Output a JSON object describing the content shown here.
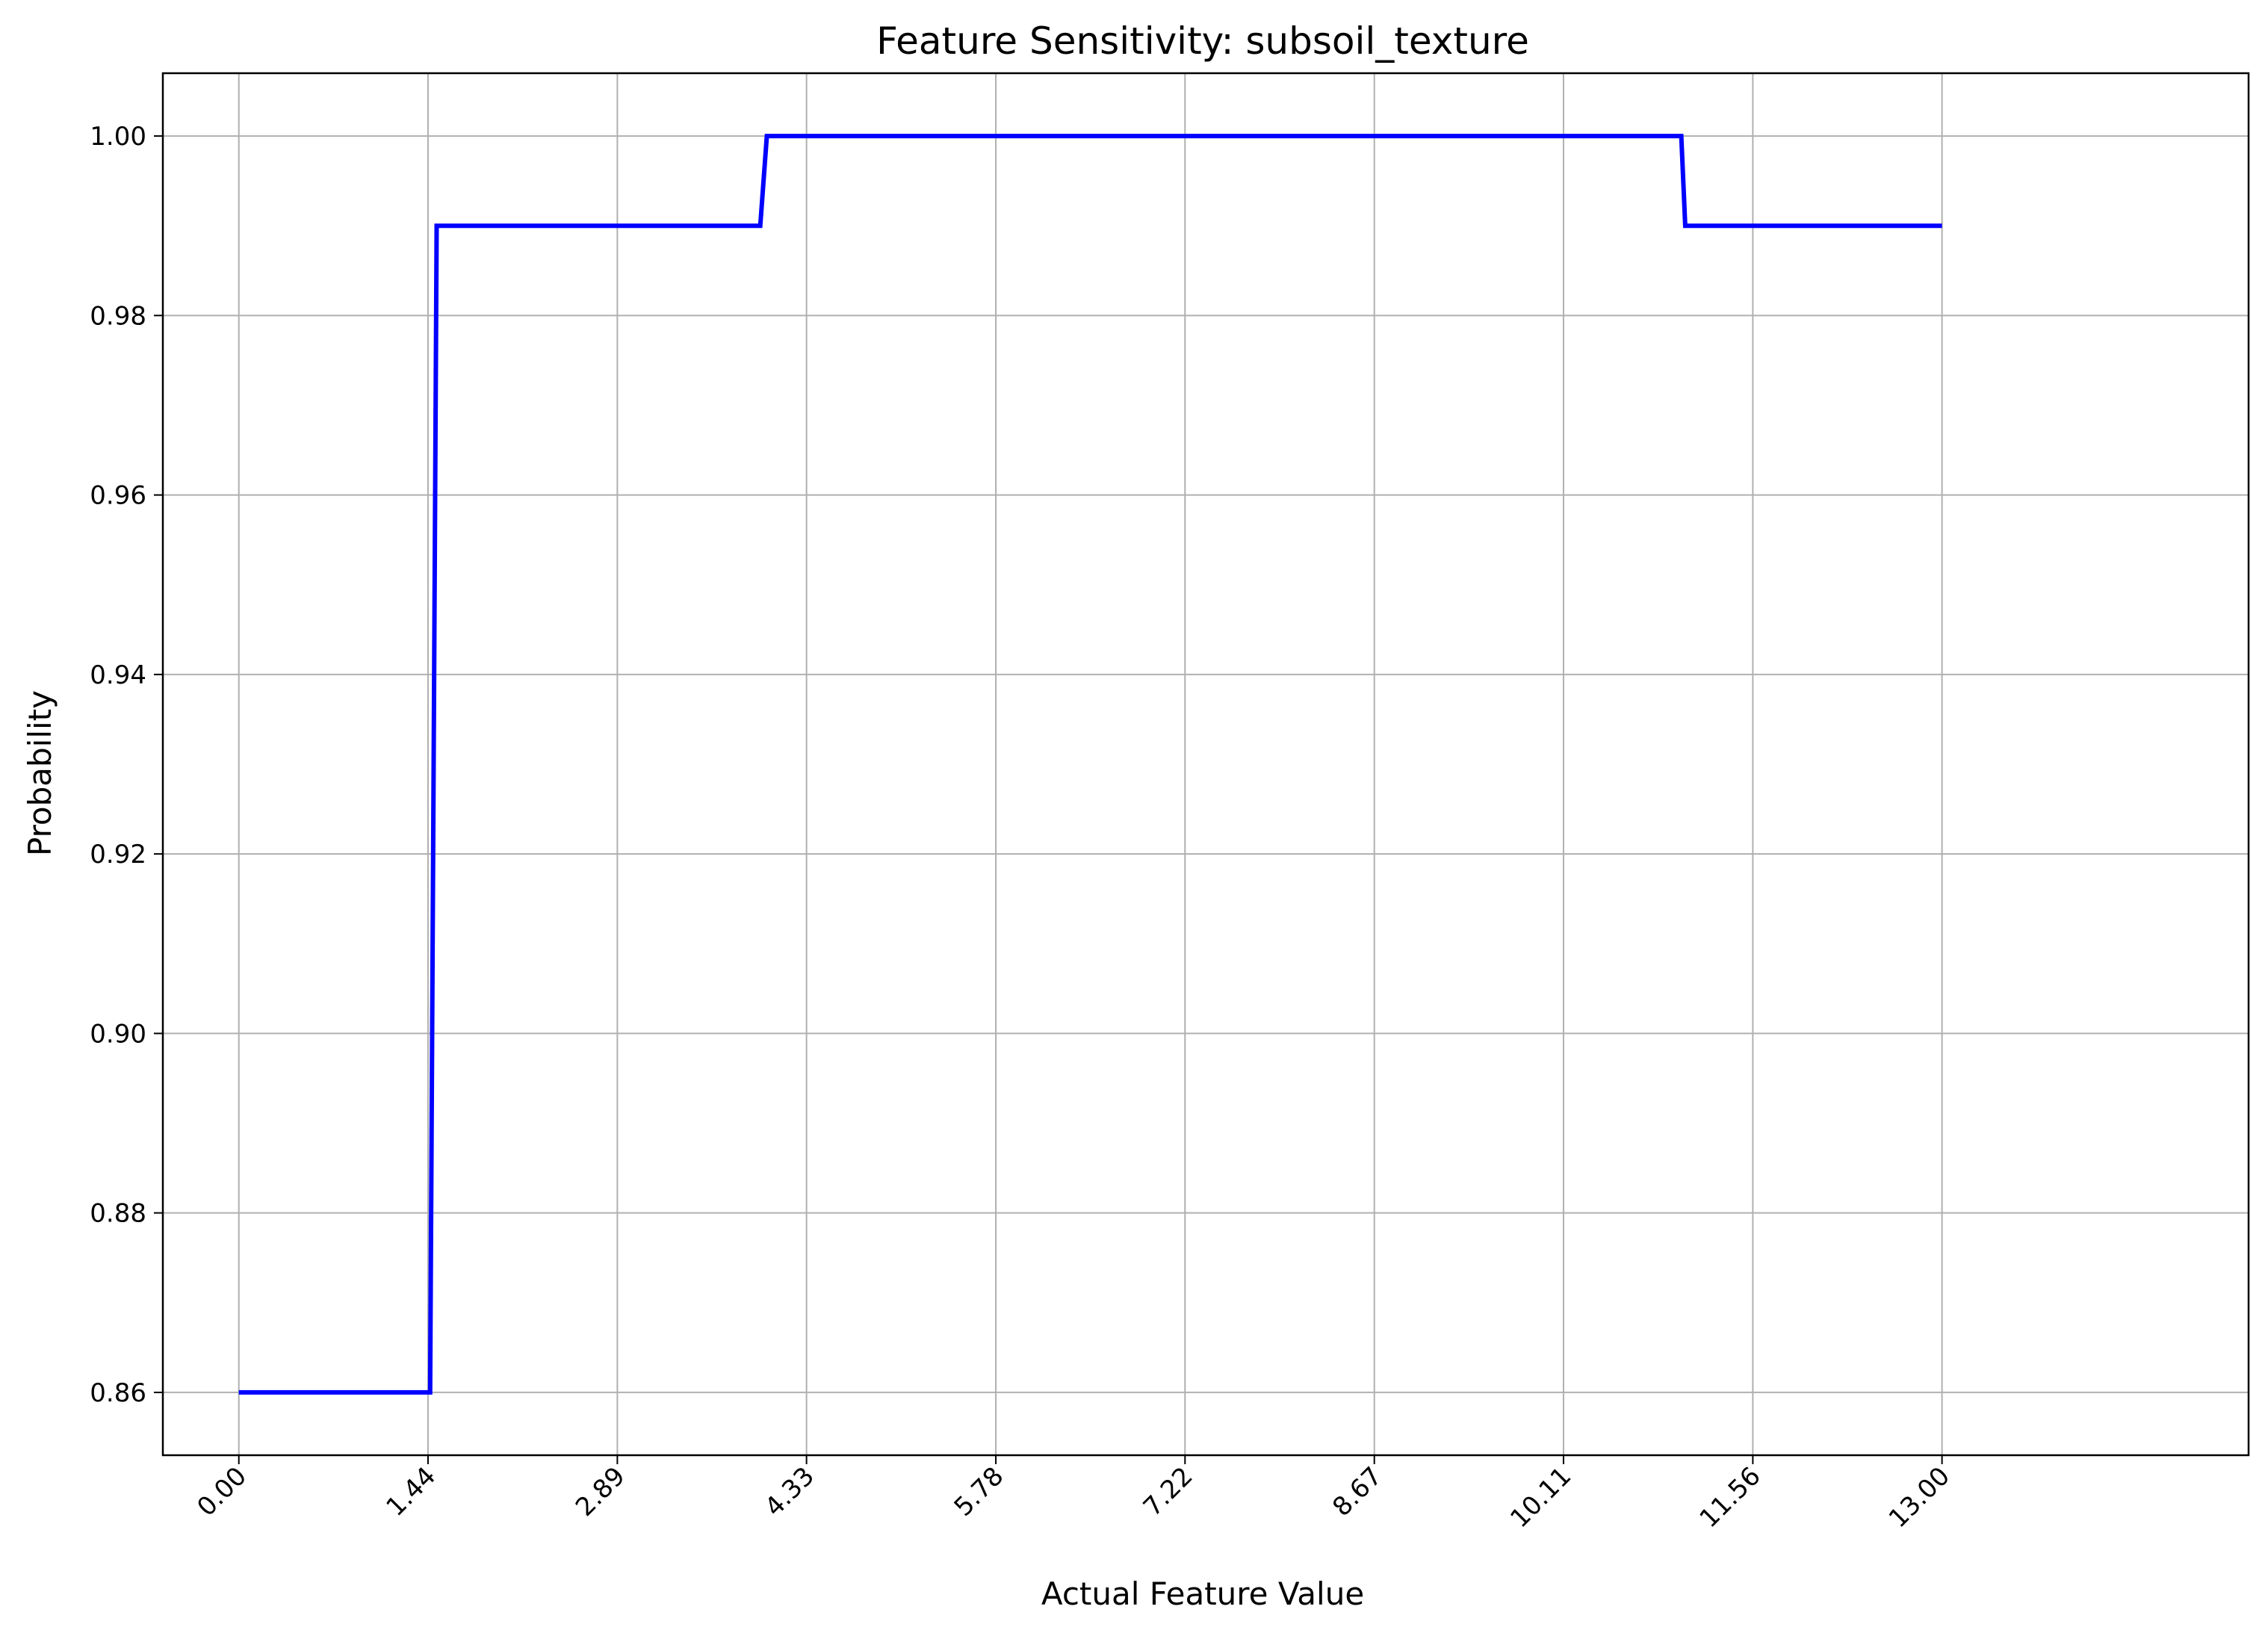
{
  "chart_data": {
    "type": "line",
    "title": "Feature Sensitivity: subsoil_texture",
    "xlabel": "Actual Feature Value",
    "ylabel": "Probability",
    "xlim": [
      -0.58,
      15.34
    ],
    "ylim": [
      0.853,
      1.007
    ],
    "x_ticks": [
      0.0,
      1.444,
      2.889,
      4.333,
      5.778,
      7.222,
      8.667,
      10.111,
      11.556,
      13.0
    ],
    "x_tick_labels": [
      "0.00",
      "1.44",
      "2.89",
      "4.33",
      "5.78",
      "7.22",
      "8.67",
      "10.11",
      "11.56",
      "13.00"
    ],
    "y_ticks": [
      0.86,
      0.88,
      0.9,
      0.92,
      0.94,
      0.96,
      0.98,
      1.0
    ],
    "y_tick_labels": [
      "0.86",
      "0.88",
      "0.90",
      "0.92",
      "0.94",
      "0.96",
      "0.98",
      "1.00"
    ],
    "grid": true,
    "series": [
      {
        "color": "#0000ff",
        "x": [
          0.0,
          1.46,
          1.51,
          3.98,
          4.03,
          11.01,
          11.04,
          13.0
        ],
        "y": [
          0.86,
          0.86,
          0.99,
          0.99,
          1.0,
          1.0,
          0.99,
          0.99
        ]
      }
    ]
  }
}
